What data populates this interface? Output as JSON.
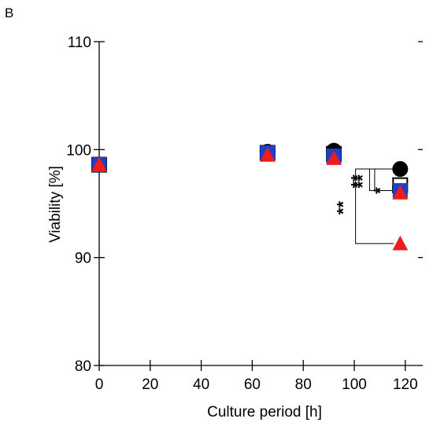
{
  "chart_data": {
    "type": "scatter",
    "panel_label": "B",
    "title": "",
    "xlabel": "Culture period [h]",
    "ylabel": "Viability [%]",
    "xlim": [
      0,
      125
    ],
    "ylim": [
      80,
      110
    ],
    "xticks": [
      0,
      20,
      40,
      60,
      80,
      100,
      120
    ],
    "yticks": [
      80,
      90,
      100,
      110
    ],
    "xtick_labels": [
      "0",
      "20",
      "40",
      "60",
      "80",
      "100",
      "120"
    ],
    "ytick_labels": [
      "80",
      "90",
      "100",
      "110"
    ],
    "grid": false,
    "legend": "none",
    "series": [
      {
        "marker": "circle",
        "color": "#000000",
        "filled": true,
        "x": [
          0,
          66,
          92,
          118
        ],
        "y": [
          98.6,
          99.8,
          99.9,
          98.2
        ]
      },
      {
        "marker": "square",
        "color": "#000000",
        "filled": false,
        "x": [
          0,
          66,
          92,
          118
        ],
        "y": [
          98.6,
          99.7,
          99.6,
          96.7
        ]
      },
      {
        "marker": "square",
        "color": "#1f3fc8",
        "filled": true,
        "x": [
          0,
          66,
          92,
          118
        ],
        "y": [
          98.6,
          99.7,
          99.4,
          96.2
        ]
      },
      {
        "marker": "triangle",
        "color": "#ee1c1c",
        "filled": true,
        "x": [
          0,
          66,
          92,
          118
        ],
        "y": [
          98.6,
          99.5,
          99.2,
          96.0
        ]
      },
      {
        "marker": "triangle",
        "color": "#ee1c1c",
        "filled": true,
        "x": [
          118
        ],
        "y": [
          91.3
        ]
      }
    ],
    "significance": [
      {
        "label": "**",
        "top_y": 98.2,
        "bottom_y": 91.3,
        "x_bracket": 100.5
      },
      {
        "label": "**",
        "top_y": 98.2,
        "bottom_y": 96.2,
        "x_bracket": 106
      },
      {
        "label": "**",
        "top_y": 98.2,
        "bottom_y": 96.2,
        "x_bracket": 108
      },
      {
        "label": "*",
        "top_y": 96.7,
        "bottom_y": 96.0,
        "x_bracket": 115
      }
    ]
  }
}
